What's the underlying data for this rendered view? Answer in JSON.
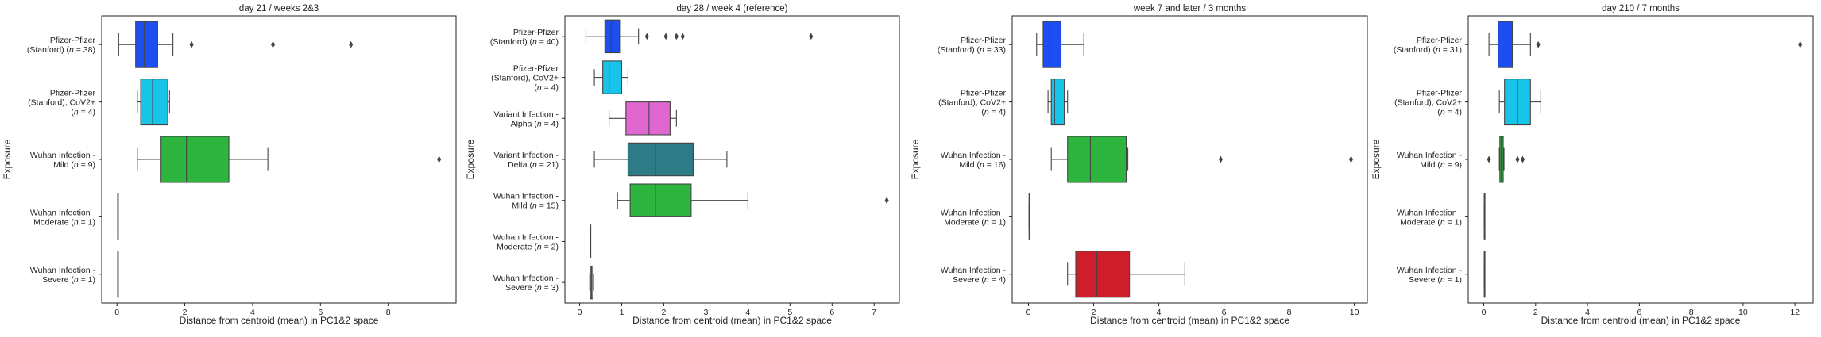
{
  "figure": {
    "ylabel": "Exposure",
    "xlabel": "Distance from centroid (mean) in PC1&2 space"
  },
  "chart_data": [
    {
      "type": "box",
      "title": "day 21 / weeks 2&3",
      "xlabel": "Distance from centroid (mean) in PC1&2 space",
      "ylabel": "Exposure",
      "xlim": [
        -0.45,
        10.0
      ],
      "xticks": [
        0,
        2,
        4,
        6,
        8
      ],
      "categories": [
        {
          "lines": [
            "Pfizer-Pfizer",
            "(Stanford) (n = 38)"
          ],
          "n": 38,
          "color": "#1d4ef2",
          "whisker_low": 0.05,
          "q1": 0.55,
          "median": 0.8,
          "q3": 1.2,
          "whisker_high": 1.65,
          "outliers": [
            2.2,
            4.6,
            6.9
          ]
        },
        {
          "lines": [
            "Pfizer-Pfizer",
            "(Stanford), CoV2+",
            "(n = 4)"
          ],
          "n": 4,
          "color": "#18c4e8",
          "whisker_low": 0.6,
          "q1": 0.7,
          "median": 1.05,
          "q3": 1.5,
          "whisker_high": 1.55,
          "outliers": []
        },
        {
          "lines": [
            "Wuhan Infection -",
            "Mild (n = 9)"
          ],
          "n": 9,
          "color": "#2db540",
          "whisker_low": 0.6,
          "q1": 1.3,
          "median": 2.05,
          "q3": 3.3,
          "whisker_high": 4.45,
          "outliers": [
            9.5
          ]
        },
        {
          "lines": [
            "Wuhan Infection -",
            "Moderate (n = 1)"
          ],
          "n": 1,
          "color": "#999999",
          "whisker_low": 0.02,
          "q1": 0.02,
          "median": 0.02,
          "q3": 0.02,
          "whisker_high": 0.02,
          "outliers": []
        },
        {
          "lines": [
            "Wuhan Infection -",
            "Severe (n = 1)"
          ],
          "n": 1,
          "color": "#999999",
          "whisker_low": 0.02,
          "q1": 0.02,
          "median": 0.02,
          "q3": 0.02,
          "whisker_high": 0.02,
          "outliers": []
        }
      ]
    },
    {
      "type": "box",
      "title": "day 28 / week 4 (reference)",
      "xlabel": "Distance from centroid (mean) in PC1&2 space",
      "ylabel": "Exposure",
      "xlim": [
        -0.35,
        7.6
      ],
      "xticks": [
        0,
        1,
        2,
        3,
        4,
        5,
        6,
        7
      ],
      "categories": [
        {
          "lines": [
            "Pfizer-Pfizer",
            "(Stanford) (n = 40)"
          ],
          "n": 40,
          "color": "#1d4ef2",
          "whisker_low": 0.15,
          "q1": 0.6,
          "median": 0.75,
          "q3": 0.95,
          "whisker_high": 1.4,
          "outliers": [
            1.6,
            2.05,
            2.3,
            2.45,
            5.5
          ]
        },
        {
          "lines": [
            "Pfizer-Pfizer",
            "(Stanford), CoV2+",
            "(n = 4)"
          ],
          "n": 4,
          "color": "#18c4e8",
          "whisker_low": 0.35,
          "q1": 0.55,
          "median": 0.7,
          "q3": 1.0,
          "whisker_high": 1.15,
          "outliers": []
        },
        {
          "lines": [
            "Variant Infection -",
            "Alpha (n = 4)"
          ],
          "n": 4,
          "color": "#e066d0",
          "whisker_low": 0.7,
          "q1": 1.1,
          "median": 1.65,
          "q3": 2.15,
          "whisker_high": 2.3,
          "outliers": []
        },
        {
          "lines": [
            "Variant Infection -",
            "Delta (n = 21)"
          ],
          "n": 21,
          "color": "#2c7b86",
          "whisker_low": 0.35,
          "q1": 1.15,
          "median": 1.8,
          "q3": 2.7,
          "whisker_high": 3.5,
          "outliers": []
        },
        {
          "lines": [
            "Wuhan Infection -",
            "Mild (n = 15)"
          ],
          "n": 15,
          "color": "#2db540",
          "whisker_low": 0.9,
          "q1": 1.2,
          "median": 1.8,
          "q3": 2.65,
          "whisker_high": 4.0,
          "outliers": [
            7.3
          ]
        },
        {
          "lines": [
            "Wuhan Infection -",
            "Moderate (n = 2)"
          ],
          "n": 2,
          "color": "#999999",
          "whisker_low": 0.25,
          "q1": 0.25,
          "median": 0.25,
          "q3": 0.26,
          "whisker_high": 0.26,
          "outliers": []
        },
        {
          "lines": [
            "Wuhan Infection -",
            "Severe (n = 3)"
          ],
          "n": 3,
          "color": "#888888",
          "whisker_low": 0.24,
          "q1": 0.25,
          "median": 0.28,
          "q3": 0.32,
          "whisker_high": 0.33,
          "outliers": []
        }
      ]
    },
    {
      "type": "box",
      "title": "week 7 and later / 3 months",
      "xlabel": "Distance from centroid (mean) in PC1&2 space",
      "ylabel": "Exposure",
      "xlim": [
        -0.5,
        10.4
      ],
      "xticks": [
        0,
        2,
        4,
        6,
        8,
        10
      ],
      "categories": [
        {
          "lines": [
            "Pfizer-Pfizer",
            "(Stanford) (n = 33)"
          ],
          "n": 33,
          "color": "#1d4ef2",
          "whisker_low": 0.25,
          "q1": 0.45,
          "median": 0.65,
          "q3": 1.0,
          "whisker_high": 1.7,
          "outliers": []
        },
        {
          "lines": [
            "Pfizer-Pfizer",
            "(Stanford), CoV2+",
            "(n = 4)"
          ],
          "n": 4,
          "color": "#18c4e8",
          "whisker_low": 0.6,
          "q1": 0.7,
          "median": 0.8,
          "q3": 1.1,
          "whisker_high": 1.2,
          "outliers": []
        },
        {
          "lines": [
            "Wuhan Infection -",
            "Mild (n = 16)"
          ],
          "n": 16,
          "color": "#2db540",
          "whisker_low": 0.7,
          "q1": 1.2,
          "median": 1.9,
          "q3": 3.0,
          "whisker_high": 3.05,
          "outliers": [
            5.9,
            9.9
          ]
        },
        {
          "lines": [
            "Wuhan Infection -",
            "Moderate (n = 1)"
          ],
          "n": 1,
          "color": "#999999",
          "whisker_low": 0.02,
          "q1": 0.02,
          "median": 0.02,
          "q3": 0.02,
          "whisker_high": 0.02,
          "outliers": []
        },
        {
          "lines": [
            "Wuhan Infection -",
            "Severe (n = 4)"
          ],
          "n": 4,
          "color": "#cf1e2b",
          "whisker_low": 1.2,
          "q1": 1.45,
          "median": 2.1,
          "q3": 3.1,
          "whisker_high": 4.8,
          "outliers": []
        }
      ]
    },
    {
      "type": "box",
      "title": "day 210 / 7 months",
      "xlabel": "Distance from centroid (mean) in PC1&2 space",
      "ylabel": "Exposure",
      "xlim": [
        -0.6,
        12.7
      ],
      "xticks": [
        0,
        2,
        4,
        6,
        8,
        10,
        12
      ],
      "categories": [
        {
          "lines": [
            "Pfizer-Pfizer",
            "(Stanford) (n = 31)"
          ],
          "n": 31,
          "color": "#1d4ef2",
          "whisker_low": 0.2,
          "q1": 0.55,
          "median": 0.85,
          "q3": 1.1,
          "whisker_high": 1.8,
          "outliers": [
            2.1,
            12.2
          ]
        },
        {
          "lines": [
            "Pfizer-Pfizer",
            "(Stanford), CoV2+",
            "(n = 4)"
          ],
          "n": 4,
          "color": "#18c4e8",
          "whisker_low": 0.6,
          "q1": 0.8,
          "median": 1.3,
          "q3": 1.8,
          "whisker_high": 2.2,
          "outliers": []
        },
        {
          "lines": [
            "Wuhan Infection -",
            "Mild (n = 9)"
          ],
          "n": 9,
          "color": "#2db540",
          "whisker_low": 0.6,
          "q1": 0.62,
          "median": 0.68,
          "q3": 0.75,
          "whisker_high": 0.78,
          "outliers": [
            0.2,
            1.3,
            1.5
          ]
        },
        {
          "lines": [
            "Wuhan Infection -",
            "Moderate (n = 1)"
          ],
          "n": 1,
          "color": "#999999",
          "whisker_low": 0.02,
          "q1": 0.02,
          "median": 0.02,
          "q3": 0.02,
          "whisker_high": 0.02,
          "outliers": []
        },
        {
          "lines": [
            "Wuhan Infection -",
            "Severe (n = 1)"
          ],
          "n": 1,
          "color": "#999999",
          "whisker_low": 0.02,
          "q1": 0.02,
          "median": 0.02,
          "q3": 0.02,
          "whisker_high": 0.02,
          "outliers": []
        }
      ]
    }
  ]
}
